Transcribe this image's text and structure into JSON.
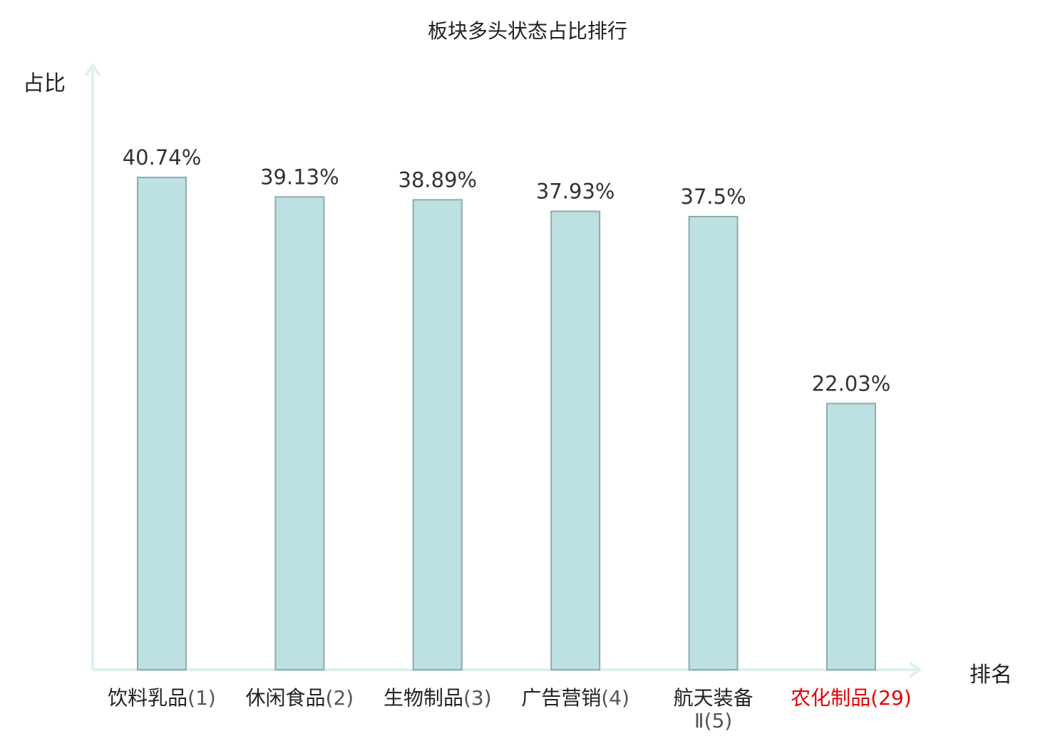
{
  "chart_data": {
    "type": "bar",
    "title": "板块多头状态占比排行",
    "ylabel": "占比",
    "xlabel": "排名",
    "ylim": [
      0,
      50
    ],
    "grid": false,
    "categories": [
      {
        "name": "饮料乳品",
        "rank": "(1)",
        "highlight": false
      },
      {
        "name": "休闲食品",
        "rank": "(2)",
        "highlight": false
      },
      {
        "name": "生物制品",
        "rank": "(3)",
        "highlight": false
      },
      {
        "name": "广告营销",
        "rank": "(4)",
        "highlight": false
      },
      {
        "name": "航天装备",
        "name2": "Ⅱ",
        "rank": "(5)",
        "highlight": false
      },
      {
        "name": "农化制品",
        "rank": "(29)",
        "highlight": true
      }
    ],
    "values": [
      40.74,
      39.13,
      38.89,
      37.93,
      37.5,
      22.03
    ],
    "value_labels": [
      "40.74%",
      "39.13%",
      "38.89%",
      "37.93%",
      "37.5%",
      "22.03%"
    ],
    "colors": {
      "bar_fill": "#bde0e3",
      "bar_stroke": "#8fabab",
      "axis": "#dff0ee",
      "label_text": "#333333",
      "highlight_text": "#e60000"
    }
  }
}
